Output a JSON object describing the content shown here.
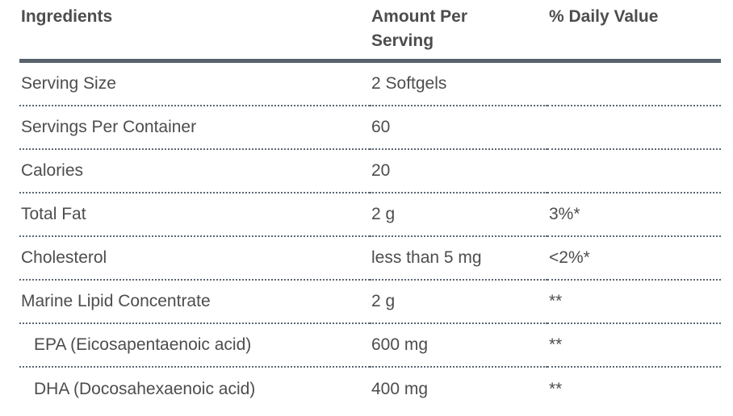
{
  "table": {
    "headers": {
      "ingredients": "Ingredients",
      "amount": "Amount Per Serving",
      "daily_value": "% Daily Value"
    },
    "rows": [
      {
        "label": "Serving Size",
        "amount": "2 Softgels",
        "dv": "",
        "indent": false
      },
      {
        "label": "Servings Per Container",
        "amount": "60",
        "dv": "",
        "indent": false
      },
      {
        "label": "Calories",
        "amount": "20",
        "dv": "",
        "indent": false
      },
      {
        "label": "Total Fat",
        "amount": "2 g",
        "dv": "3%*",
        "indent": false
      },
      {
        "label": "Cholesterol",
        "amount": "less than 5 mg",
        "dv": "<2%*",
        "indent": false
      },
      {
        "label": "Marine Lipid Concentrate",
        "amount": "2 g",
        "dv": "**",
        "indent": false
      },
      {
        "label": "EPA (Eicosapentaenoic acid)",
        "amount": "600 mg",
        "dv": "**",
        "indent": true
      },
      {
        "label": "DHA (Docosahexaenoic acid)",
        "amount": "400 mg",
        "dv": "**",
        "indent": true
      }
    ],
    "colors": {
      "header_rule": "#57626d",
      "row_divider_dotted": "#5c6772",
      "text": "#4d4d4d"
    }
  }
}
